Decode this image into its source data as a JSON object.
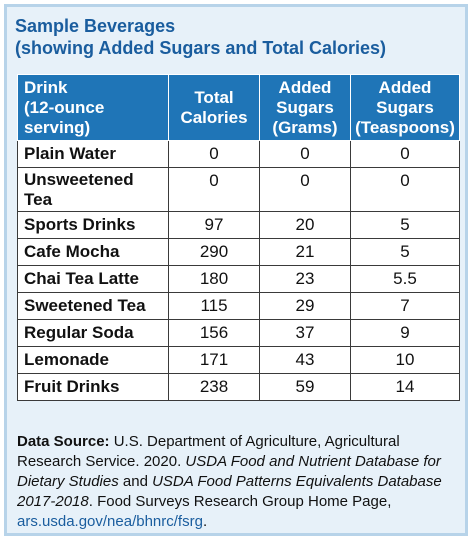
{
  "title": {
    "line1": "Sample Beverages",
    "line2": "(showing Added Sugars and Total Calories)"
  },
  "table": {
    "headers": [
      [
        "Drink",
        "(12-ounce",
        "serving)"
      ],
      [
        "Total",
        "Calories"
      ],
      [
        "Added",
        "Sugars",
        "(Grams)"
      ],
      [
        "Added",
        "Sugars",
        "(Teaspoons)"
      ]
    ],
    "rows": [
      {
        "drink": [
          "Plain Water"
        ],
        "calories": "0",
        "grams": "0",
        "teaspoons": "0"
      },
      {
        "drink": [
          "Unsweetened",
          "Tea"
        ],
        "calories": "0",
        "grams": "0",
        "teaspoons": "0"
      },
      {
        "drink": [
          "Sports Drinks"
        ],
        "calories": "97",
        "grams": "20",
        "teaspoons": "5"
      },
      {
        "drink": [
          "Cafe Mocha"
        ],
        "calories": "290",
        "grams": "21",
        "teaspoons": "5"
      },
      {
        "drink": [
          "Chai Tea Latte"
        ],
        "calories": "180",
        "grams": "23",
        "teaspoons": "5.5"
      },
      {
        "drink": [
          "Sweetened Tea"
        ],
        "calories": "115",
        "grams": "29",
        "teaspoons": "7"
      },
      {
        "drink": [
          "Regular Soda"
        ],
        "calories": "156",
        "grams": "37",
        "teaspoons": "9"
      },
      {
        "drink": [
          "Lemonade"
        ],
        "calories": "171",
        "grams": "43",
        "teaspoons": "10"
      },
      {
        "drink": [
          "Fruit Drinks"
        ],
        "calories": "238",
        "grams": "59",
        "teaspoons": "14"
      }
    ]
  },
  "source": {
    "label": "Data Source:",
    "text1": " U.S. Department of Agriculture, Agricultural Research Service. 2020. ",
    "italic1": "USDA Food and Nutrient Database for Dietary Studies",
    "text2": " and ",
    "italic2": "USDA Food Patterns Equivalents Database 2017-2018",
    "text3": ". Food Surveys Research Group Home Page, ",
    "link": "ars.usda.gov/nea/bhnrc/fsrg",
    "text4": "."
  },
  "colors": {
    "header_bg": "#1f75b7",
    "title": "#1a5d9e",
    "card_bg": "#e7f1f9",
    "card_border": "#b7d3e9"
  }
}
